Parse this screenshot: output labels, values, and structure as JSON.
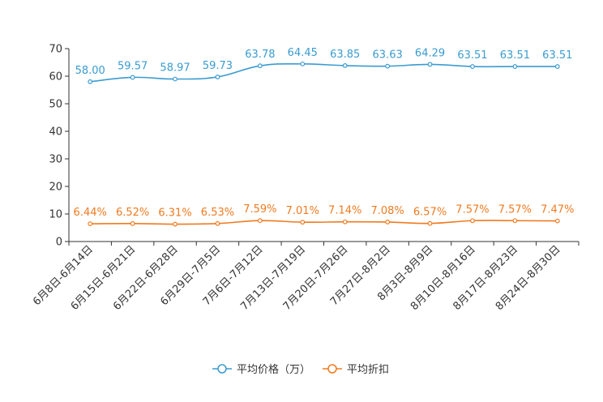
{
  "chart_data": {
    "type": "line",
    "title": "",
    "xlabel": "",
    "ylabel": "",
    "ylim": [
      0,
      70
    ],
    "yticks": [
      0,
      10,
      20,
      30,
      40,
      50,
      60,
      70
    ],
    "grid": false,
    "legend_position": "bottom-center",
    "categories": [
      "6月8日-6月14日",
      "6月15日-6月21日",
      "6月22日-6月28日",
      "6月29日-7月5日",
      "7月6日-7月12日",
      "7月13日-7月19日",
      "7月20日-7月26日",
      "7月27日-8月2日",
      "8月3日-8月9日",
      "8月10日-8月16日",
      "8月17日-8月23日",
      "8月24日-8月30日"
    ],
    "series": [
      {
        "name": "平均价格（万）",
        "color": "#3a9bd0",
        "values": [
          58.0,
          59.57,
          58.97,
          59.73,
          63.78,
          64.45,
          63.85,
          63.63,
          64.29,
          63.51,
          63.51,
          63.51
        ],
        "labels": [
          "58.00",
          "59.57",
          "58.97",
          "59.73",
          "63.78",
          "64.45",
          "63.85",
          "63.63",
          "64.29",
          "63.51",
          "63.51",
          "63.51"
        ]
      },
      {
        "name": "平均折扣",
        "color": "#f07a1f",
        "values": [
          6.44,
          6.52,
          6.31,
          6.53,
          7.59,
          7.01,
          7.14,
          7.08,
          6.57,
          7.57,
          7.57,
          7.47
        ],
        "labels": [
          "6.44%",
          "6.52%",
          "6.31%",
          "6.53%",
          "7.59%",
          "7.01%",
          "7.14%",
          "7.08%",
          "6.57%",
          "7.57%",
          "7.57%",
          "7.47%"
        ]
      }
    ]
  }
}
